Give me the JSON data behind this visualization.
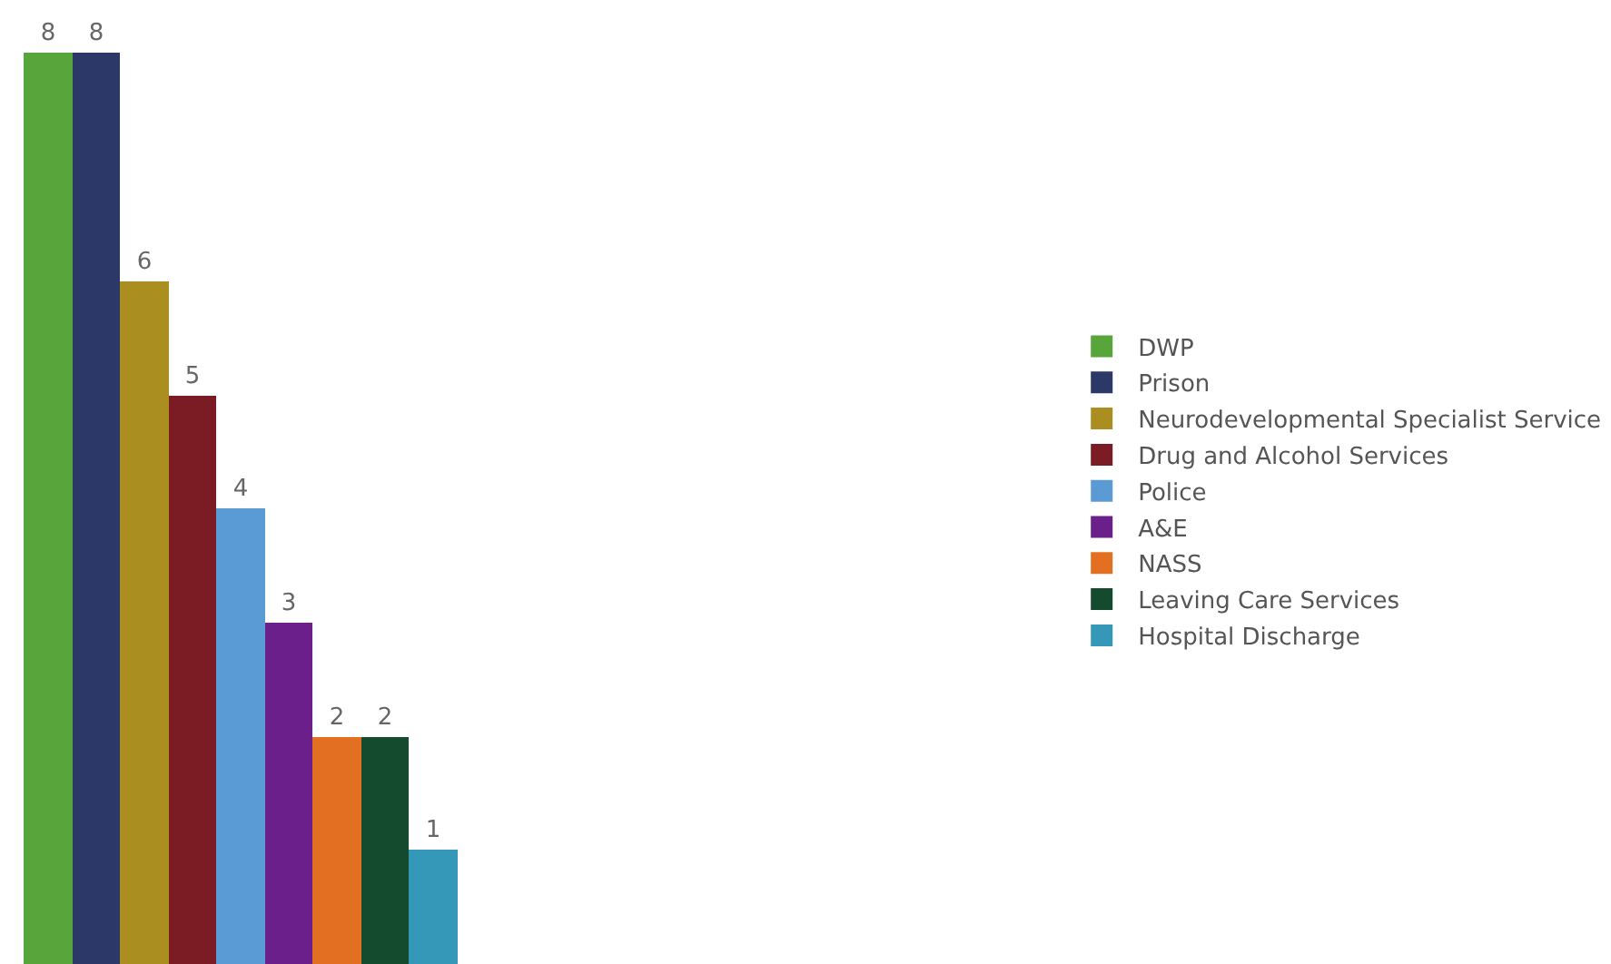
{
  "chart_data": {
    "type": "bar",
    "categories": [
      null
    ],
    "series": [
      {
        "name": "DWP",
        "color": "#58a53b",
        "values": [
          8
        ]
      },
      {
        "name": "Prison",
        "color": "#2b3868",
        "values": [
          8
        ]
      },
      {
        "name": "Neurodevelopmental Specialist Service",
        "color": "#aa8f20",
        "values": [
          6
        ]
      },
      {
        "name": "Drug and Alcohol Services",
        "color": "#7b1c25",
        "values": [
          5
        ]
      },
      {
        "name": "Police",
        "color": "#5b9bd5",
        "values": [
          4
        ]
      },
      {
        "name": "A&E",
        "color": "#6a1f8a",
        "values": [
          3
        ]
      },
      {
        "name": "NASS",
        "color": "#e37022",
        "values": [
          2
        ]
      },
      {
        "name": "Leaving Care Services",
        "color": "#144a2e",
        "values": [
          2
        ]
      },
      {
        "name": "Hospital Discharge",
        "color": "#3598b8",
        "values": [
          1
        ]
      }
    ],
    "ylim": [
      0,
      8.47
    ],
    "data_labels": true,
    "legend": "right",
    "tick_labels": false
  }
}
